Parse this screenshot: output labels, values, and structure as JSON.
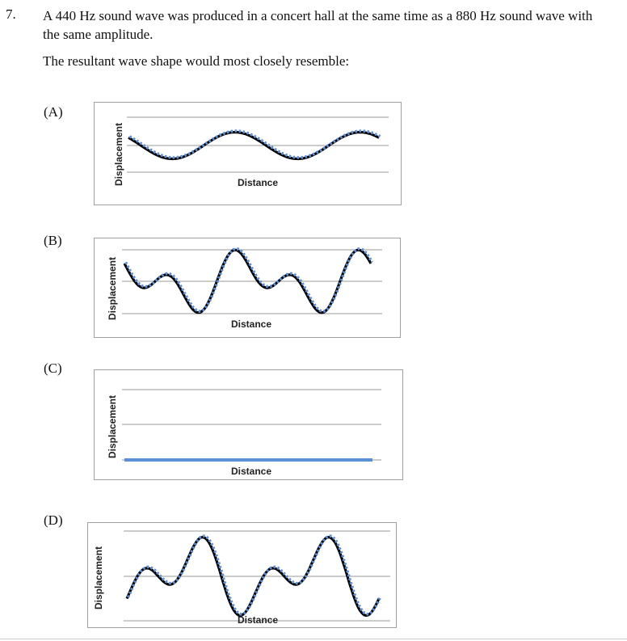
{
  "question": {
    "number": "7.",
    "text": "A 440 Hz sound wave was produced in a concert hall at the same time as a 880 Hz sound wave with the same amplitude.",
    "prompt": "The resultant wave shape would most closely resemble:"
  },
  "options": [
    {
      "label": "(A)"
    },
    {
      "label": "(B)"
    },
    {
      "label": "(C)"
    },
    {
      "label": "(D)"
    }
  ],
  "chart_data": [
    {
      "type": "line",
      "option": "(A)",
      "ylabel": "Displacement",
      "xlabel": "Distance",
      "shape": "single-frequency",
      "cycles": 2,
      "amplitude": 0.5,
      "phase": 0.4,
      "grid": true,
      "series_colors": [
        "#000000",
        "#5b8fd6"
      ]
    },
    {
      "type": "line",
      "option": "(B)",
      "ylabel": "Displacement",
      "xlabel": "Distance",
      "shape": "sum-of-two-frequencies",
      "cycles": 2,
      "amplitude": 0.55,
      "phase": 0.25,
      "grid": true,
      "series_colors": [
        "#000000",
        "#5b8fd6"
      ]
    },
    {
      "type": "line",
      "option": "(C)",
      "ylabel": "Displacement",
      "xlabel": "Distance",
      "shape": "flat",
      "cycles": 0,
      "amplitude": 0,
      "phase": 0,
      "grid": true,
      "series_colors": [
        "#5b8fd6"
      ]
    },
    {
      "type": "line",
      "option": "(D)",
      "ylabel": "Displacement",
      "xlabel": "Distance",
      "shape": "sum-of-two-frequencies-inverted",
      "cycles": 2,
      "amplitude": 0.55,
      "phase": 0.25,
      "grid": true,
      "series_colors": [
        "#000000",
        "#5b8fd6"
      ]
    }
  ]
}
